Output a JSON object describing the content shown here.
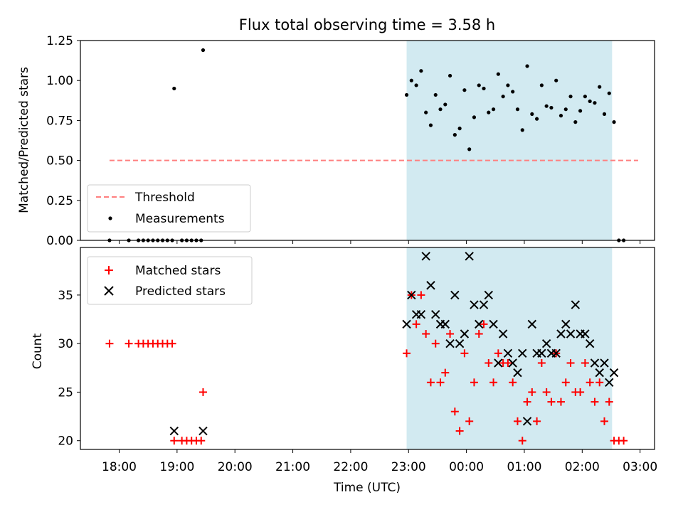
{
  "chart_data": [
    {
      "type": "scatter",
      "title": "Flux total observing time = 3.58 h",
      "xlabel": "",
      "ylabel": "Matched/Predicted stars",
      "ylim": [
        0,
        1.25
      ],
      "yticks": [
        "0.00",
        "0.25",
        "0.50",
        "0.75",
        "1.00",
        "1.25"
      ],
      "grid": false,
      "legend_position": "lower-left",
      "shaded_span": [
        "22:58",
        "02:31"
      ],
      "shade_color": "#add8e6",
      "threshold": {
        "name": "Threshold",
        "value": 0.5,
        "x_start": "17:50",
        "x_end": "02:58",
        "color": "#ff7f7f",
        "style": "dashed"
      },
      "series": [
        {
          "name": "Measurements",
          "color": "#000000",
          "marker": "dot",
          "points": [
            [
              "17:50",
              0
            ],
            [
              "18:10",
              0
            ],
            [
              "18:20",
              0
            ],
            [
              "18:25",
              0
            ],
            [
              "18:30",
              0
            ],
            [
              "18:35",
              0
            ],
            [
              "18:40",
              0
            ],
            [
              "18:45",
              0
            ],
            [
              "18:50",
              0
            ],
            [
              "18:55",
              0
            ],
            [
              "18:57",
              0.95
            ],
            [
              "19:05",
              0
            ],
            [
              "19:10",
              0
            ],
            [
              "19:15",
              0
            ],
            [
              "19:20",
              0
            ],
            [
              "19:25",
              0
            ],
            [
              "19:27",
              1.19
            ],
            [
              "22:58",
              0.91
            ],
            [
              "23:03",
              1.0
            ],
            [
              "23:08",
              0.97
            ],
            [
              "23:13",
              1.06
            ],
            [
              "23:18",
              0.8
            ],
            [
              "23:23",
              0.72
            ],
            [
              "23:28",
              0.91
            ],
            [
              "23:33",
              0.82
            ],
            [
              "23:38",
              0.85
            ],
            [
              "23:43",
              1.03
            ],
            [
              "23:48",
              0.66
            ],
            [
              "23:53",
              0.7
            ],
            [
              "23:58",
              0.94
            ],
            [
              "00:03",
              0.57
            ],
            [
              "00:08",
              0.77
            ],
            [
              "00:13",
              0.97
            ],
            [
              "00:18",
              0.95
            ],
            [
              "00:23",
              0.8
            ],
            [
              "00:28",
              0.82
            ],
            [
              "00:33",
              1.04
            ],
            [
              "00:38",
              0.9
            ],
            [
              "00:43",
              0.97
            ],
            [
              "00:48",
              0.93
            ],
            [
              "00:53",
              0.82
            ],
            [
              "00:58",
              0.69
            ],
            [
              "01:03",
              1.09
            ],
            [
              "01:08",
              0.79
            ],
            [
              "01:13",
              0.76
            ],
            [
              "01:18",
              0.97
            ],
            [
              "01:23",
              0.84
            ],
            [
              "01:28",
              0.83
            ],
            [
              "01:33",
              1.0
            ],
            [
              "01:38",
              0.78
            ],
            [
              "01:43",
              0.82
            ],
            [
              "01:48",
              0.9
            ],
            [
              "01:53",
              0.74
            ],
            [
              "01:58",
              0.81
            ],
            [
              "02:03",
              0.9
            ],
            [
              "02:08",
              0.87
            ],
            [
              "02:13",
              0.86
            ],
            [
              "02:18",
              0.96
            ],
            [
              "02:23",
              0.79
            ],
            [
              "02:28",
              0.92
            ],
            [
              "02:33",
              0.74
            ],
            [
              "02:38",
              0
            ],
            [
              "02:43",
              0
            ]
          ]
        }
      ]
    },
    {
      "type": "scatter",
      "title": "",
      "xlabel": "Time (UTC)",
      "ylabel": "Count",
      "ylim": [
        19.1,
        39.9
      ],
      "yticks": [
        "20",
        "25",
        "30",
        "35"
      ],
      "xticks": [
        "18:00",
        "19:00",
        "20:00",
        "21:00",
        "22:00",
        "23:00",
        "00:00",
        "01:00",
        "02:00",
        "03:00"
      ],
      "grid": false,
      "legend_position": "top-left",
      "shaded_span": [
        "22:58",
        "02:31"
      ],
      "shade_color": "#add8e6",
      "series": [
        {
          "name": "Matched stars",
          "color": "#ff0000",
          "marker": "plus",
          "points": [
            [
              "17:50",
              30
            ],
            [
              "18:10",
              30
            ],
            [
              "18:20",
              30
            ],
            [
              "18:25",
              30
            ],
            [
              "18:30",
              30
            ],
            [
              "18:35",
              30
            ],
            [
              "18:40",
              30
            ],
            [
              "18:45",
              30
            ],
            [
              "18:50",
              30
            ],
            [
              "18:55",
              30
            ],
            [
              "18:57",
              20
            ],
            [
              "19:05",
              20
            ],
            [
              "19:10",
              20
            ],
            [
              "19:15",
              20
            ],
            [
              "19:20",
              20
            ],
            [
              "19:25",
              20
            ],
            [
              "19:27",
              25
            ],
            [
              "22:58",
              29
            ],
            [
              "23:03",
              35
            ],
            [
              "23:08",
              32
            ],
            [
              "23:13",
              35
            ],
            [
              "23:18",
              31
            ],
            [
              "23:23",
              26
            ],
            [
              "23:28",
              30
            ],
            [
              "23:33",
              26
            ],
            [
              "23:38",
              27
            ],
            [
              "23:43",
              31
            ],
            [
              "23:48",
              23
            ],
            [
              "23:53",
              21
            ],
            [
              "23:58",
              29
            ],
            [
              "00:03",
              22
            ],
            [
              "00:08",
              26
            ],
            [
              "00:13",
              31
            ],
            [
              "00:18",
              32
            ],
            [
              "00:23",
              28
            ],
            [
              "00:28",
              26
            ],
            [
              "00:33",
              29
            ],
            [
              "00:38",
              28
            ],
            [
              "00:43",
              28
            ],
            [
              "00:48",
              26
            ],
            [
              "00:53",
              22
            ],
            [
              "00:58",
              20
            ],
            [
              "01:03",
              24
            ],
            [
              "01:08",
              25
            ],
            [
              "01:13",
              22
            ],
            [
              "01:18",
              28
            ],
            [
              "01:23",
              25
            ],
            [
              "01:28",
              24
            ],
            [
              "01:33",
              29
            ],
            [
              "01:38",
              24
            ],
            [
              "01:43",
              26
            ],
            [
              "01:48",
              28
            ],
            [
              "01:53",
              25
            ],
            [
              "01:58",
              25
            ],
            [
              "02:03",
              28
            ],
            [
              "02:08",
              26
            ],
            [
              "02:13",
              24
            ],
            [
              "02:18",
              26
            ],
            [
              "02:23",
              22
            ],
            [
              "02:28",
              24
            ],
            [
              "02:33",
              20
            ],
            [
              "02:38",
              20
            ],
            [
              "02:43",
              20
            ]
          ]
        },
        {
          "name": "Predicted stars",
          "color": "#000000",
          "marker": "x",
          "points": [
            [
              "18:57",
              21
            ],
            [
              "19:27",
              21
            ],
            [
              "22:58",
              32
            ],
            [
              "23:03",
              35
            ],
            [
              "23:08",
              33
            ],
            [
              "23:13",
              33
            ],
            [
              "23:18",
              39
            ],
            [
              "23:23",
              36
            ],
            [
              "23:28",
              33
            ],
            [
              "23:33",
              32
            ],
            [
              "23:38",
              32
            ],
            [
              "23:43",
              30
            ],
            [
              "23:48",
              35
            ],
            [
              "23:53",
              30
            ],
            [
              "23:58",
              31
            ],
            [
              "00:03",
              39
            ],
            [
              "00:08",
              34
            ],
            [
              "00:13",
              32
            ],
            [
              "00:18",
              34
            ],
            [
              "00:23",
              35
            ],
            [
              "00:28",
              32
            ],
            [
              "00:33",
              28
            ],
            [
              "00:38",
              31
            ],
            [
              "00:43",
              29
            ],
            [
              "00:48",
              28
            ],
            [
              "00:53",
              27
            ],
            [
              "00:58",
              29
            ],
            [
              "01:03",
              22
            ],
            [
              "01:08",
              32
            ],
            [
              "01:13",
              29
            ],
            [
              "01:18",
              29
            ],
            [
              "01:23",
              30
            ],
            [
              "01:28",
              29
            ],
            [
              "01:33",
              29
            ],
            [
              "01:38",
              31
            ],
            [
              "01:43",
              32
            ],
            [
              "01:48",
              31
            ],
            [
              "01:53",
              34
            ],
            [
              "01:58",
              31
            ],
            [
              "02:03",
              31
            ],
            [
              "02:08",
              30
            ],
            [
              "02:13",
              28
            ],
            [
              "02:18",
              27
            ],
            [
              "02:23",
              28
            ],
            [
              "02:28",
              26
            ],
            [
              "02:33",
              27
            ]
          ]
        }
      ]
    }
  ]
}
